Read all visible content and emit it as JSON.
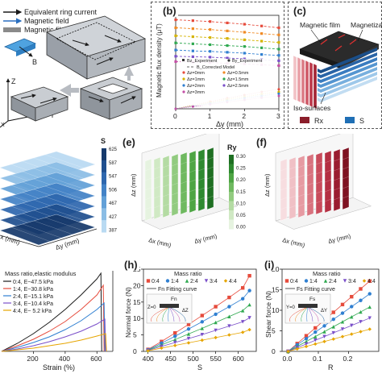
{
  "panels": {
    "a": {
      "legend": [
        "Equivalent ring current",
        "Magnetic field",
        "Magnetic film"
      ],
      "axes": {
        "b": "B",
        "z": "Z",
        "y": "Y",
        "x": "X"
      }
    },
    "b": {
      "label": "(b)",
      "ylabel": "Magnetic flux density (μT)",
      "xlabel": "Δy (mm)",
      "xticks": [
        "0",
        "1",
        "2",
        "3"
      ],
      "legend": [
        "Bz_Experiment",
        "By_Experiment",
        "B_Corrected Model",
        "Δz=0mm",
        "Δz=0.5mm",
        "Δz=1mm",
        "Δz=1.5mm",
        "Δz=2mm",
        "Δz=2.5mm",
        "Δz=3mm"
      ]
    },
    "c": {
      "label": "(c)",
      "texts": [
        "Magnetic film",
        "Magnetiza",
        "Iso-surfaces"
      ],
      "legend": [
        "Rx",
        "S"
      ]
    },
    "d": {
      "colorbar_title": "S",
      "colorbar_ticks": [
        "625",
        "587",
        "547",
        "506",
        "467",
        "427",
        "387"
      ],
      "axis_labels": [
        "x (mm)",
        "Δy (mm)"
      ]
    },
    "e": {
      "label": "(e)",
      "colorbar_title": "Ry",
      "colorbar_ticks": [
        "0.30",
        "0.25",
        "0.20",
        "0.15",
        "0.10",
        "0.05",
        "0.00"
      ],
      "axis_labels": [
        "Δz (mm)",
        "Δx (mm)",
        "Δy (mm)"
      ]
    },
    "f": {
      "label": "(f)",
      "axis_labels": [
        "Δz (mm)",
        "Δx (mm)",
        "Δy (mm)"
      ]
    },
    "g": {
      "legend_title": "Mass ratio,elastic modulus",
      "legend": [
        "0:4, E~47.5 kPa",
        "1:4, E~30.8 kPa",
        "2:4, E~15.1 kPa",
        "3:4, E~10.4 kPa",
        "4:4, E~ 5.2 kPa"
      ],
      "xlabel": "Strain (%)",
      "xticks": [
        "200",
        "400",
        "600"
      ]
    },
    "h": {
      "label": "(h)",
      "ylabel": "Normal force (N)",
      "xlabel": "S",
      "legend_title": "Mass ratio",
      "fit_label": "Fn Fitting curve",
      "inset_labels": {
        "fn": "Fn",
        "z0": "Z=0",
        "dz": "ΔZ"
      }
    },
    "i": {
      "label": "(i)",
      "ylabel": "Shear force (N)",
      "xlabel": "R",
      "legend_title": "Mass ratio",
      "fit_label": "Fs Fitting curve",
      "inset_labels": {
        "fs": "Fs",
        "y0": "Y=0",
        "dy": "ΔY"
      }
    }
  },
  "chart_data": [
    {
      "id": "b",
      "type": "line",
      "xlabel": "Δy (mm)",
      "ylabel": "Magnetic flux density (μT)",
      "xlim": [
        0,
        3
      ],
      "x": [
        0,
        0.5,
        1,
        1.5,
        2,
        2.5,
        3
      ],
      "series": [
        {
          "name": "Δz=0mm",
          "color": "#e64b3c",
          "values": [
            100,
            99,
            98,
            96.5,
            95,
            93,
            91
          ]
        },
        {
          "name": "Δz=0.5mm",
          "color": "#f08a24",
          "values": [
            91,
            90,
            89,
            87.5,
            86,
            84.5,
            83
          ]
        },
        {
          "name": "Δz=1mm",
          "color": "#d4b300",
          "values": [
            82,
            81,
            80,
            79,
            77.5,
            76,
            74.5
          ]
        },
        {
          "name": "Δz=1.5mm",
          "color": "#2ea84f",
          "values": [
            74,
            73,
            72,
            71,
            70,
            68.5,
            67
          ]
        },
        {
          "name": "Δz=2mm",
          "color": "#2f7fd1",
          "values": [
            66,
            65,
            64.5,
            63.5,
            62.5,
            61,
            60
          ]
        },
        {
          "name": "Δz=2.5mm",
          "color": "#7a4fc9",
          "values": [
            59,
            58.5,
            58,
            57,
            56,
            55,
            54
          ]
        },
        {
          "name": "Δz=3mm",
          "color": "#c44fa6",
          "values": [
            53,
            52.5,
            52,
            51,
            50.5,
            49.5,
            48.5
          ]
        },
        {
          "name": "By_Experiment Δz=0mm",
          "color": "#e64b3c",
          "values": [
            0,
            4,
            8,
            12,
            15.5,
            19,
            22
          ]
        },
        {
          "name": "By_Experiment Δz=1mm",
          "color": "#d4b300",
          "values": [
            0,
            3.5,
            7,
            10.5,
            13.5,
            16.5,
            19
          ]
        },
        {
          "name": "By_Experiment Δz=2mm",
          "color": "#2f7fd1",
          "values": [
            0,
            3,
            6,
            9,
            12,
            14.5,
            17
          ]
        },
        {
          "name": "By_Experiment Δz=3mm",
          "color": "#c44fa6",
          "values": [
            0,
            2.5,
            5,
            7.5,
            10,
            12.5,
            14.5
          ]
        }
      ]
    },
    {
      "id": "g",
      "type": "line",
      "xlabel": "Strain (%)",
      "xlim": [
        0,
        700
      ],
      "series": [
        {
          "name": "0:4, E~47.5 kPa",
          "color": "#1b1b1b",
          "x": [
            0,
            100,
            200,
            300,
            400,
            500,
            600,
            625,
            630
          ],
          "values": [
            0,
            0.1,
            0.22,
            0.36,
            0.52,
            0.7,
            0.9,
            0.97,
            0
          ]
        },
        {
          "name": "1:4, E~30.8 kPa",
          "color": "#e64b3c",
          "x": [
            0,
            100,
            200,
            300,
            400,
            500,
            600,
            640,
            645
          ],
          "values": [
            0,
            0.07,
            0.15,
            0.25,
            0.37,
            0.52,
            0.7,
            0.82,
            0
          ]
        },
        {
          "name": "2:4, E~15.1 kPa",
          "color": "#2f7fd1",
          "x": [
            0,
            100,
            200,
            300,
            400,
            500,
            600,
            645,
            650
          ],
          "values": [
            0,
            0.05,
            0.11,
            0.18,
            0.27,
            0.38,
            0.52,
            0.6,
            0
          ]
        },
        {
          "name": "3:4, E~10.4 kPa",
          "color": "#7a4fc9",
          "x": [
            0,
            100,
            200,
            300,
            400,
            500,
            600,
            650,
            655
          ],
          "values": [
            0,
            0.03,
            0.07,
            0.12,
            0.18,
            0.25,
            0.34,
            0.4,
            0
          ]
        },
        {
          "name": "4:4, E~ 5.2 kPa",
          "color": "#e6a500",
          "x": [
            0,
            100,
            200,
            300,
            400,
            500,
            600,
            655,
            660
          ],
          "values": [
            0,
            0.02,
            0.04,
            0.07,
            0.1,
            0.14,
            0.19,
            0.22,
            0
          ]
        }
      ]
    },
    {
      "id": "h",
      "type": "scatter",
      "xlabel": "S",
      "ylabel": "Normal force (N)",
      "xlim": [
        390,
        640
      ],
      "ylim": [
        0,
        25
      ],
      "xticks": [
        400,
        450,
        500,
        550,
        600
      ],
      "yticks": [
        0,
        5,
        10,
        15,
        20,
        25
      ],
      "x": [
        400,
        430,
        460,
        490,
        520,
        550,
        580,
        610,
        625
      ],
      "series": [
        {
          "name": "0:4",
          "color": "#e64b3c",
          "marker": "square",
          "values": [
            0.6,
            3.0,
            5.6,
            8.2,
            10.9,
            13.6,
            16.4,
            19.3,
            23.0
          ]
        },
        {
          "name": "1:4",
          "color": "#2f7fd1",
          "marker": "circle",
          "values": [
            0.5,
            2.5,
            4.6,
            6.8,
            9.0,
            11.3,
            13.6,
            16.0,
            18.5
          ]
        },
        {
          "name": "2:4",
          "color": "#2ea84f",
          "marker": "triangle",
          "values": [
            0.4,
            2.0,
            3.6,
            5.3,
            7.0,
            8.8,
            10.6,
            12.4,
            14.2
          ]
        },
        {
          "name": "3:4",
          "color": "#7a4fc9",
          "marker": "triangle-down",
          "values": [
            0.3,
            1.5,
            2.7,
            3.9,
            5.1,
            6.4,
            7.7,
            9.0,
            10.2
          ]
        },
        {
          "name": "4:4",
          "color": "#e6a500",
          "marker": "diamond",
          "values": [
            0.2,
            1.0,
            1.8,
            2.6,
            3.4,
            4.2,
            5.0,
            5.8,
            6.6
          ]
        }
      ]
    },
    {
      "id": "i",
      "type": "scatter",
      "xlabel": "R",
      "ylabel": "Shear force (N)",
      "xlim": [
        -0.02,
        0.3
      ],
      "ylim": [
        0,
        20
      ],
      "xticks": [
        0.0,
        0.1,
        0.2
      ],
      "yticks": [
        0,
        5,
        10,
        15,
        20
      ],
      "x": [
        0.0,
        0.03,
        0.06,
        0.09,
        0.12,
        0.15,
        0.18,
        0.21,
        0.24,
        0.27
      ],
      "series": [
        {
          "name": "0:4",
          "color": "#e64b3c",
          "marker": "square",
          "values": [
            0.0,
            1.9,
            3.8,
            5.7,
            7.6,
            9.5,
            11.4,
            13.3,
            15.2,
            17.1
          ]
        },
        {
          "name": "1:4",
          "color": "#2f7fd1",
          "marker": "circle",
          "values": [
            0.0,
            1.6,
            3.1,
            4.7,
            6.2,
            7.8,
            9.3,
            10.9,
            12.4,
            14.0
          ]
        },
        {
          "name": "2:4",
          "color": "#2ea84f",
          "marker": "triangle",
          "values": [
            0.0,
            1.2,
            2.4,
            3.6,
            4.8,
            6.0,
            7.2,
            8.4,
            9.6,
            10.8
          ]
        },
        {
          "name": "3:4",
          "color": "#7a4fc9",
          "marker": "triangle-down",
          "values": [
            0.0,
            0.9,
            1.8,
            2.7,
            3.6,
            4.5,
            5.4,
            6.3,
            7.2,
            8.1
          ]
        },
        {
          "name": "4:4",
          "color": "#e6a500",
          "marker": "diamond",
          "values": [
            0.0,
            0.6,
            1.2,
            1.8,
            2.4,
            3.0,
            3.6,
            4.2,
            4.8,
            5.4
          ]
        }
      ]
    }
  ]
}
